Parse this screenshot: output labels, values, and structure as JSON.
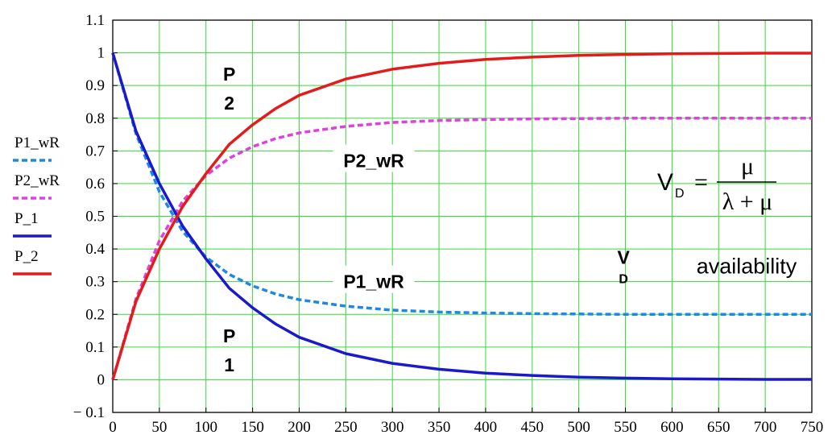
{
  "chart_data": {
    "type": "line",
    "xlim": [
      0,
      750
    ],
    "ylim": [
      -0.1,
      1.1
    ],
    "grid": true,
    "x_ticks": [
      "0",
      "50",
      "100",
      "150",
      "200",
      "250",
      "300",
      "350",
      "400",
      "450",
      "500",
      "550",
      "600",
      "650",
      "700",
      "750"
    ],
    "y_ticks": [
      "− 0.1",
      "0",
      "0.1",
      "0.2",
      "0.3",
      "0.4",
      "0.5",
      "0.6",
      "0.7",
      "0.8",
      "0.9",
      "1",
      "1.1"
    ],
    "legend_placement": "left",
    "series": [
      {
        "name": "P1_wR",
        "style": "dashed",
        "color": "#1e88e5",
        "x": [
          0,
          25,
          50,
          75,
          100,
          125,
          150,
          175,
          200,
          250,
          300,
          350,
          400,
          450,
          500,
          550,
          600,
          650,
          700,
          750
        ],
        "y": [
          1.0,
          0.752,
          0.575,
          0.454,
          0.375,
          0.322,
          0.287,
          0.262,
          0.245,
          0.225,
          0.213,
          0.207,
          0.204,
          0.202,
          0.201,
          0.2,
          0.2,
          0.2,
          0.2,
          0.2
        ]
      },
      {
        "name": "P2_wR",
        "style": "dashed",
        "color": "#e040e0",
        "x": [
          0,
          25,
          50,
          75,
          100,
          125,
          150,
          175,
          200,
          250,
          300,
          350,
          400,
          450,
          500,
          550,
          600,
          650,
          700,
          750
        ],
        "y": [
          0.0,
          0.248,
          0.425,
          0.546,
          0.625,
          0.678,
          0.713,
          0.738,
          0.755,
          0.775,
          0.787,
          0.793,
          0.796,
          0.798,
          0.799,
          0.8,
          0.8,
          0.8,
          0.8,
          0.8
        ]
      },
      {
        "name": "P_1",
        "style": "solid",
        "color": "#1a1acc",
        "x": [
          0,
          25,
          50,
          75,
          100,
          125,
          150,
          175,
          200,
          250,
          300,
          350,
          400,
          450,
          500,
          550,
          600,
          650,
          700,
          750
        ],
        "y": [
          1.0,
          0.76,
          0.6,
          0.47,
          0.37,
          0.28,
          0.22,
          0.17,
          0.13,
          0.08,
          0.05,
          0.032,
          0.02,
          0.013,
          0.008,
          0.005,
          0.003,
          0.002,
          0.001,
          0.001
        ]
      },
      {
        "name": "P_2",
        "style": "solid",
        "color": "#e31b1b",
        "x": [
          0,
          25,
          50,
          75,
          100,
          125,
          150,
          175,
          200,
          250,
          300,
          350,
          400,
          450,
          500,
          550,
          600,
          650,
          700,
          750
        ],
        "y": [
          0.0,
          0.24,
          0.4,
          0.53,
          0.63,
          0.72,
          0.78,
          0.83,
          0.87,
          0.92,
          0.95,
          0.968,
          0.98,
          0.987,
          0.992,
          0.995,
          0.997,
          0.998,
          0.999,
          0.999
        ]
      }
    ],
    "annotations": [
      {
        "text": "P",
        "sub": "2",
        "x": 125,
        "y": 0.9
      },
      {
        "text": "P2_wR",
        "x": 280,
        "y": 0.67
      },
      {
        "text": "P1_wR",
        "x": 280,
        "y": 0.3
      },
      {
        "text": "P",
        "sub": "1",
        "x": 125,
        "y": 0.1
      },
      {
        "text": "V",
        "sub": "D",
        "x": 548,
        "y": 0.35
      },
      {
        "text": "availability",
        "x": 680,
        "y": 0.35
      }
    ],
    "formula": {
      "lhs": "V",
      "lhs_sub": "D",
      "equals": "=",
      "numerator": "μ",
      "denominator": "λ + μ"
    }
  }
}
